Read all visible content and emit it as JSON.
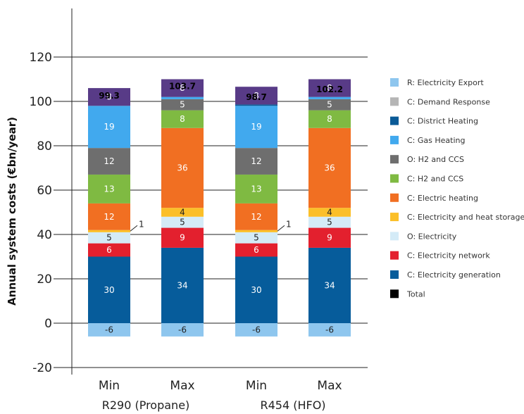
{
  "chart_data": {
    "type": "bar",
    "stacked": true,
    "ylabel": "Annual system costs (€bn/year)",
    "ylim": [
      -20,
      120
    ],
    "yticks": [
      -20,
      0,
      20,
      40,
      60,
      80,
      100,
      120
    ],
    "categories": [
      "Min",
      "Max",
      "Min",
      "Max"
    ],
    "groups": [
      {
        "label": "R290 (Propane)",
        "categories": [
          0,
          1
        ]
      },
      {
        "label": "R454 (HFO)",
        "categories": [
          2,
          3
        ]
      }
    ],
    "grid": "horizontal",
    "legend_position": "right",
    "series": [
      {
        "name": "R: Electricity Export",
        "color": "#8ec6ee",
        "values": [
          -6,
          -6,
          -6,
          -6
        ],
        "labels": [
          "-6",
          "-6",
          "-6",
          "-6"
        ]
      },
      {
        "name": "C: Electricity generation",
        "color": "#065c9b",
        "values": [
          30,
          34,
          30,
          34
        ],
        "labels": [
          "30",
          "34",
          "30",
          "34"
        ]
      },
      {
        "name": "C: Electricity network",
        "color": "#e3202e",
        "values": [
          6,
          9,
          6,
          9
        ],
        "labels": [
          "6",
          "9",
          "6",
          "9"
        ]
      },
      {
        "name": "O: Electricity",
        "color": "#d4ebf7",
        "values": [
          5,
          5,
          5,
          5
        ],
        "labels": [
          "5",
          "5",
          "5",
          "5"
        ]
      },
      {
        "name": "C: Electricity and heat storage",
        "color": "#fbbf28",
        "values": [
          1,
          4,
          1,
          4
        ],
        "labels": [
          "1",
          "4",
          "1",
          "4"
        ]
      },
      {
        "name": "C: Electric heating",
        "color": "#f16f22",
        "values": [
          12,
          36,
          12,
          36
        ],
        "labels": [
          "12",
          "36",
          "12",
          "36"
        ]
      },
      {
        "name": "C: H2 and CCS",
        "color": "#7fba42",
        "values": [
          13,
          8,
          13,
          8
        ],
        "labels": [
          "13",
          "8",
          "13",
          "8"
        ]
      },
      {
        "name": "O: H2 and CCS",
        "color": "#6e6e6e",
        "values": [
          12,
          5,
          12,
          5
        ],
        "labels": [
          "12",
          "5",
          "12",
          "5"
        ]
      },
      {
        "name": "C: Gas Heating",
        "color": "#41a9ee",
        "values": [
          19,
          1,
          19,
          1
        ],
        "labels": [
          "19",
          "",
          "19",
          ""
        ]
      },
      {
        "name": "C: District Heating",
        "color": "#0a5a97",
        "values": [
          0,
          0,
          0.6,
          0
        ],
        "labels": [
          "",
          "",
          "",
          ""
        ]
      },
      {
        "name": "C: Demand Response",
        "color": "#b5b5b5",
        "values": [
          0,
          0,
          0,
          0
        ],
        "labels": [
          "",
          "",
          "",
          ""
        ]
      },
      {
        "name": "Total",
        "color": "#000000",
        "values": [
          99.3,
          103.7,
          98.7,
          102.2
        ],
        "labels": [
          "99.3",
          "103.7",
          "98.7",
          "102.2"
        ]
      }
    ],
    "extra_segments": [
      {
        "name": "Purple",
        "color": "#583b87",
        "values": [
          8,
          8,
          8,
          8
        ],
        "labels": [
          "8",
          "8",
          "8",
          "8"
        ]
      }
    ],
    "callouts": [
      {
        "category": 0,
        "text": "1"
      },
      {
        "category": 2,
        "text": "1"
      }
    ],
    "legend": [
      {
        "name": "R: Electricity Export",
        "color": "#8ec6ee"
      },
      {
        "name": "C: Demand Response",
        "color": "#b5b5b5"
      },
      {
        "name": "C: District Heating",
        "color": "#0a5a97"
      },
      {
        "name": "C: Gas Heating",
        "color": "#41a9ee"
      },
      {
        "name": "O: H2 and CCS",
        "color": "#6e6e6e"
      },
      {
        "name": "C: H2 and CCS",
        "color": "#7fba42"
      },
      {
        "name": "C: Electric heating",
        "color": "#f16f22"
      },
      {
        "name": "C: Electricity and heat storage",
        "color": "#fbbf28"
      },
      {
        "name": "O: Electricity",
        "color": "#d4ebf7"
      },
      {
        "name": "C: Electricity network",
        "color": "#e3202e"
      },
      {
        "name": "C: Electricity generation",
        "color": "#065c9b"
      },
      {
        "name": "Total",
        "color": "#000000"
      }
    ]
  }
}
